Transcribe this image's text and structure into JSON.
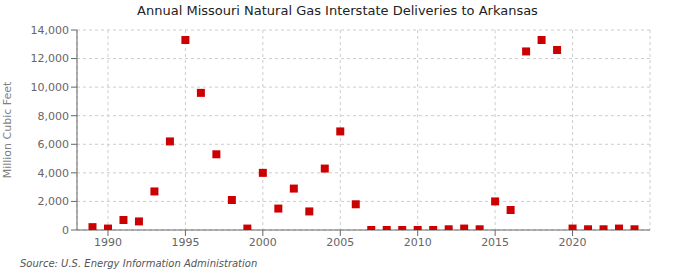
{
  "chart_data": {
    "type": "scatter",
    "title": "Annual Missouri Natural Gas Interstate Deliveries to Arkansas",
    "ylabel": "Million Cubic Feet",
    "annotations": [
      "Source: U.S. Energy Information Administration"
    ],
    "x": [
      1989,
      1990,
      1991,
      1992,
      1993,
      1994,
      1995,
      1996,
      1997,
      1998,
      1999,
      2000,
      2001,
      2002,
      2003,
      2004,
      2005,
      2006,
      2007,
      2008,
      2009,
      2010,
      2011,
      2012,
      2013,
      2014,
      2015,
      2016,
      2017,
      2018,
      2019,
      2020,
      2021,
      2022,
      2023,
      2024
    ],
    "values": [
      200,
      100,
      700,
      600,
      2700,
      6200,
      13300,
      9600,
      5300,
      2100,
      100,
      4000,
      1500,
      2900,
      1300,
      4300,
      6900,
      1800,
      0,
      0,
      0,
      0,
      0,
      50,
      100,
      50,
      2000,
      1400,
      12500,
      13300,
      12600,
      100,
      50,
      50,
      100,
      50
    ],
    "color": "#cc0000",
    "marker": "square",
    "xlim": [
      1988,
      2025
    ],
    "ylim": [
      0,
      14000
    ],
    "xticks": [
      1990,
      1995,
      2000,
      2005,
      2010,
      2015,
      2020
    ],
    "yticks": [
      0,
      {
        "value": 2000,
        "label": "2,000"
      },
      {
        "value": 4000,
        "label": "4,000"
      },
      {
        "value": 6000,
        "label": "6,000"
      },
      {
        "value": 8000,
        "label": "8,000"
      },
      {
        "value": 10000,
        "label": "10,000"
      },
      {
        "value": 12000,
        "label": "12,000"
      },
      {
        "value": 14000,
        "label": "14,000"
      }
    ],
    "grid": true
  }
}
